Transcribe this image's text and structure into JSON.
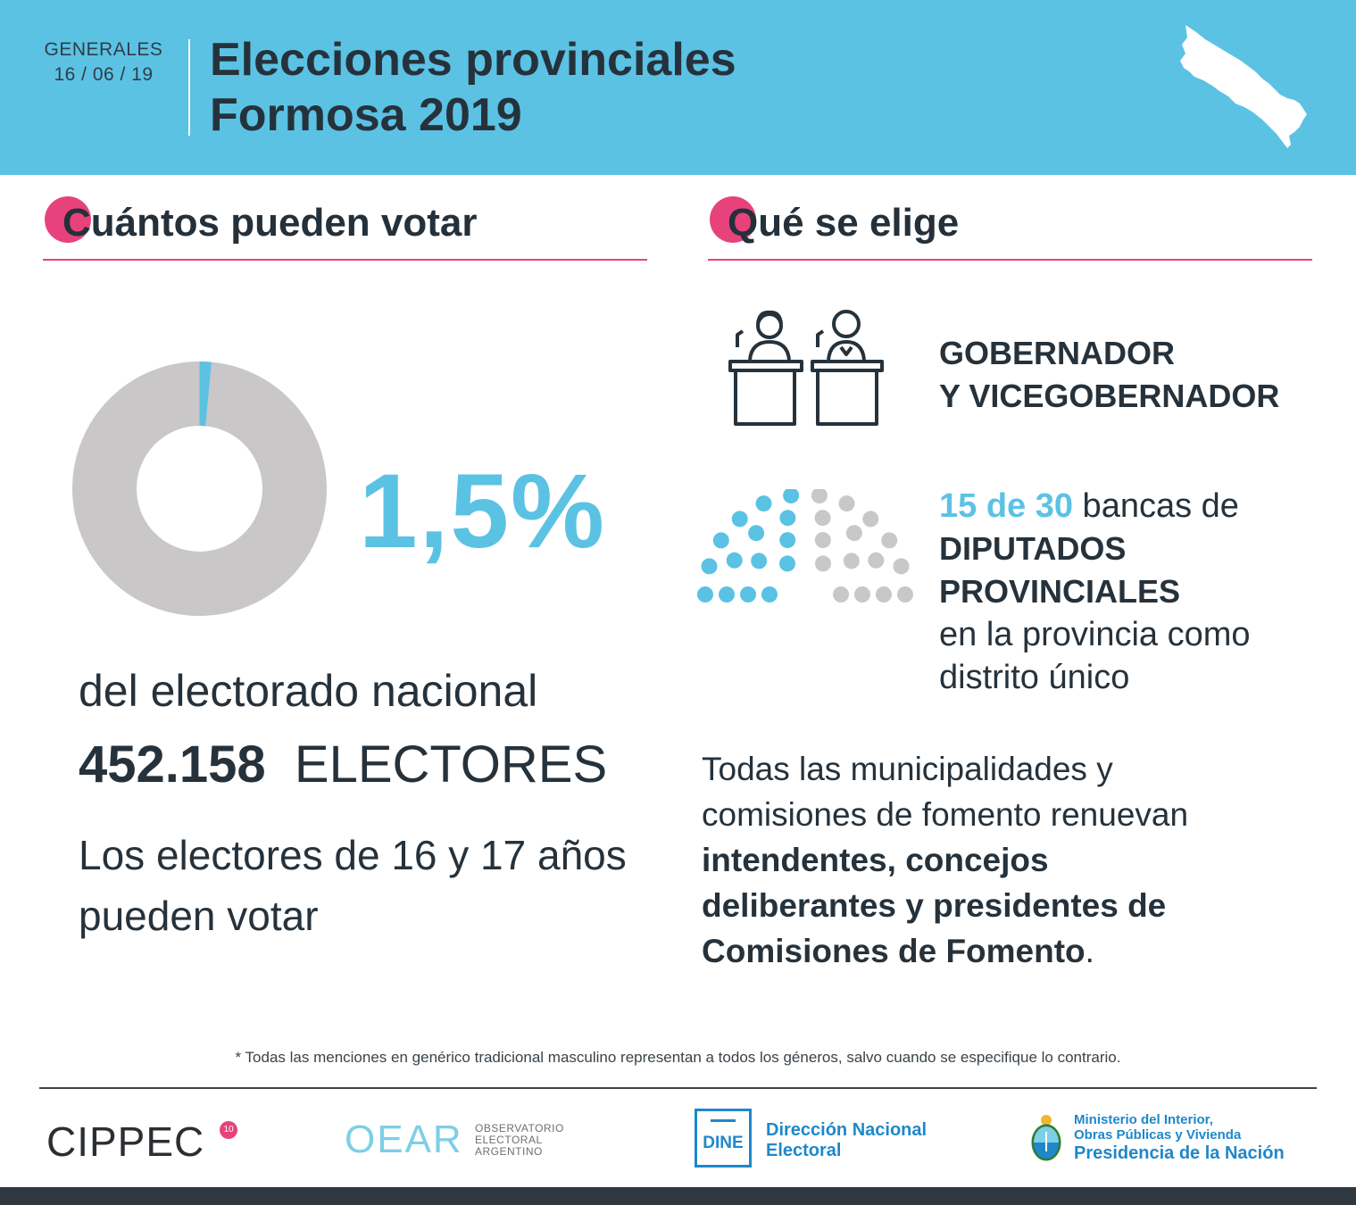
{
  "header": {
    "election_type": "GENERALES",
    "date": "16 / 06 / 19",
    "title_line1": "Elecciones provinciales",
    "title_line2": "Formosa 2019",
    "map_icon": "formosa-map-icon"
  },
  "left": {
    "heading": "Cuántos pueden votar",
    "percent": "1,5%",
    "percent_value": 1.5,
    "desc": "del electorado nacional",
    "electores_count": "452.158",
    "electores_label": "ELECTORES",
    "youth_line1": "Los electores de 16 y 17 años",
    "youth_line2": "pueden votar"
  },
  "right": {
    "heading": "Qué se elige",
    "gob_line1": "GOBERNADOR",
    "gob_line2": "Y VICEGOBERNADOR",
    "dip_hl": "15 de 30",
    "dip_rest": " bancas de",
    "dip_b1": "DIPUTADOS",
    "dip_b2": "PROVINCIALES",
    "dip_line3": "en la provincia como",
    "dip_line4": "distrito único",
    "seats_elected": 15,
    "seats_total": 30,
    "muni_line1": "Todas las municipalidades y",
    "muni_line2": "comisiones de fomento renuevan",
    "muni_b1": "intendentes, concejos",
    "muni_b2": "deliberantes y presidentes de",
    "muni_b3": "Comisiones de Fomento",
    "muni_end": "."
  },
  "footer": {
    "footnote": "* Todas las menciones en genérico tradicional masculino representan a todos los géneros, salvo cuando se especifique lo contrario.",
    "cippec": "CIPPEC",
    "cippec_badge": "10",
    "oear": "OEAR",
    "oear_sub1": "OBSERVATORIO",
    "oear_sub2": "ELECTORAL",
    "oear_sub3": "ARGENTINO",
    "dine_label": "DINE",
    "dine_name1": "Dirección Nacional",
    "dine_name2": "Electoral",
    "min_line1": "Ministerio del Interior,",
    "min_line2": "Obras Públicas y Vivienda",
    "min_line3": "Presidencia de la Nación"
  },
  "colors": {
    "header_bg": "#5bc2e4",
    "accent_pink": "#e8427c",
    "accent_blue": "#5bc2e4",
    "grey": "#c9c7c8",
    "text_dark": "#26323b",
    "dine_blue": "#1e88c9"
  }
}
